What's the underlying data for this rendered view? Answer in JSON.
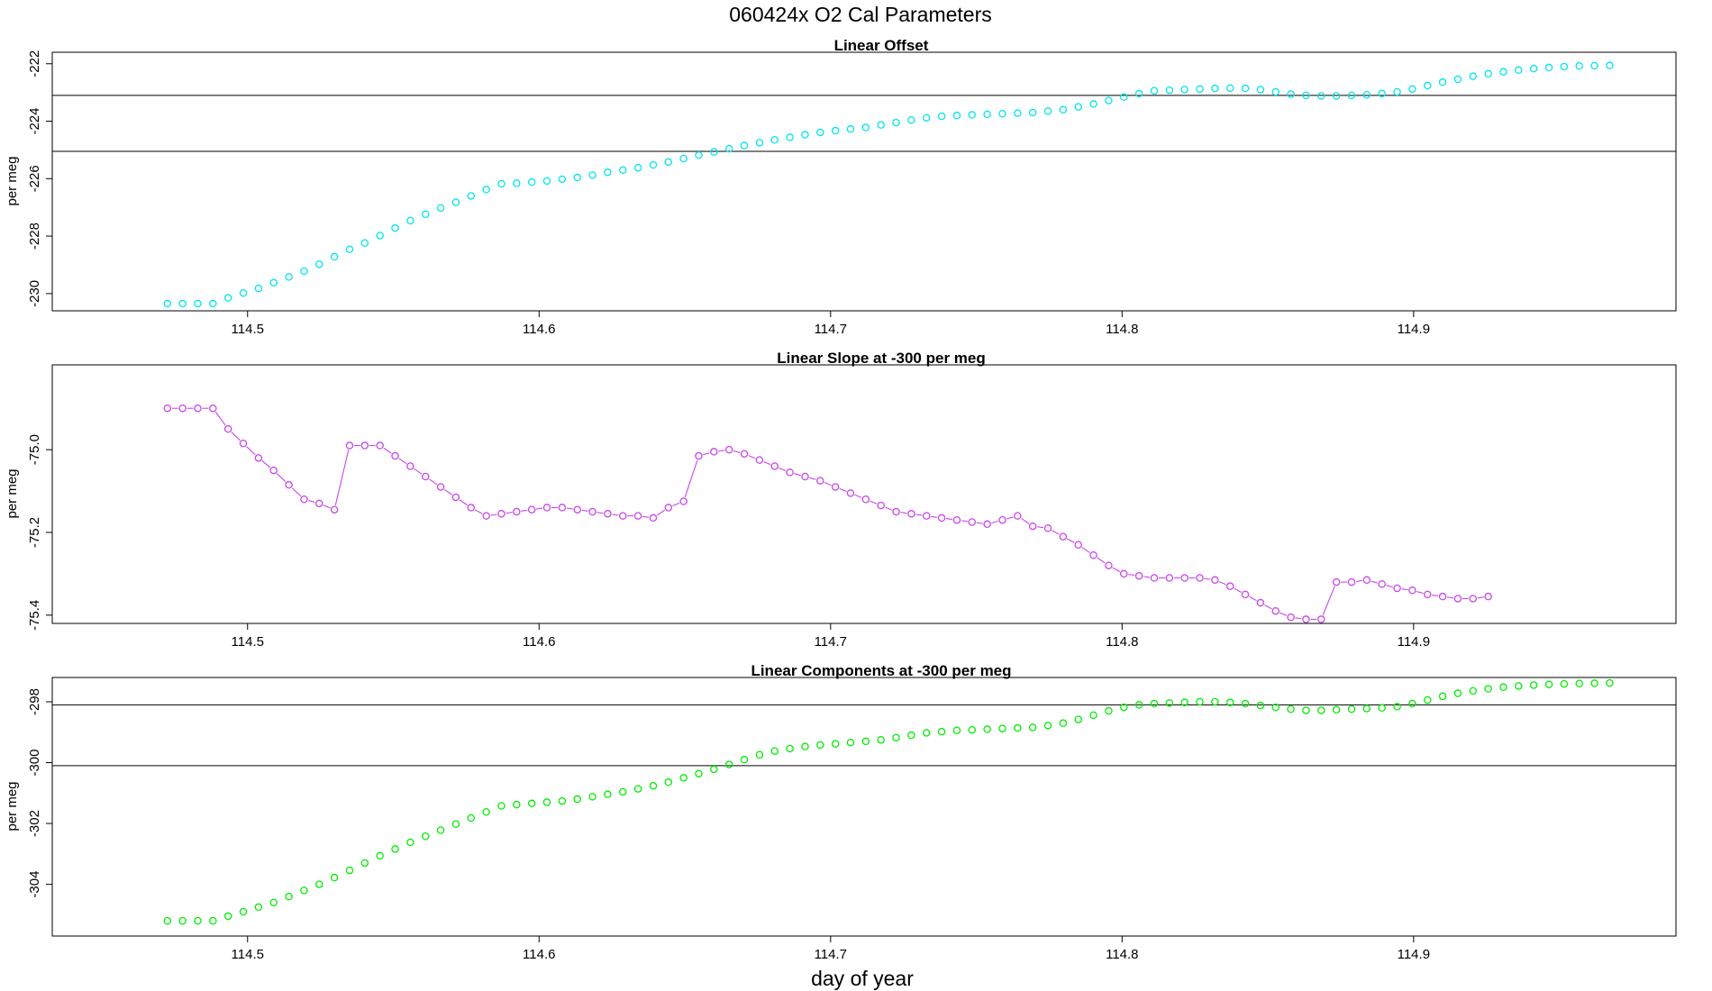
{
  "figure": {
    "title": "060424x   O2 Cal Parameters",
    "xlabel": "day of year"
  },
  "chart_data": [
    {
      "type": "scatter",
      "title": "Linear Offset",
      "xlabel": "",
      "ylabel": "per meg",
      "xlim": [
        114.433,
        114.99
      ],
      "ylim": [
        -230.6,
        -221.6
      ],
      "xticks": [
        114.5,
        114.6,
        114.7,
        114.8,
        114.9
      ],
      "yticks": [
        -230,
        -228,
        -226,
        -224,
        -222
      ],
      "hlines": [
        -223.1,
        -225.05
      ],
      "color": "#00e5ee",
      "connect_lines": false,
      "series": [
        {
          "x_start": 114.4725,
          "x_step": 0.005208,
          "values": [
            -230.35,
            -230.35,
            -230.35,
            -230.35,
            -230.15,
            -229.98,
            -229.82,
            -229.62,
            -229.42,
            -229.22,
            -228.98,
            -228.72,
            -228.46,
            -228.24,
            -227.98,
            -227.72,
            -227.46,
            -227.24,
            -227.02,
            -226.82,
            -226.6,
            -226.38,
            -226.18,
            -226.16,
            -226.12,
            -226.08,
            -226.02,
            -225.96,
            -225.88,
            -225.78,
            -225.7,
            -225.62,
            -225.52,
            -225.42,
            -225.3,
            -225.18,
            -225.07,
            -224.96,
            -224.85,
            -224.75,
            -224.65,
            -224.56,
            -224.47,
            -224.39,
            -224.33,
            -224.27,
            -224.22,
            -224.13,
            -224.05,
            -223.96,
            -223.88,
            -223.83,
            -223.8,
            -223.78,
            -223.76,
            -223.74,
            -223.72,
            -223.7,
            -223.65,
            -223.6,
            -223.5,
            -223.4,
            -223.28,
            -223.16,
            -223.04,
            -222.94,
            -222.92,
            -222.9,
            -222.88,
            -222.86,
            -222.85,
            -222.86,
            -222.9,
            -222.98,
            -223.06,
            -223.1,
            -223.12,
            -223.12,
            -223.1,
            -223.08,
            -223.04,
            -222.98,
            -222.88,
            -222.76,
            -222.64,
            -222.54,
            -222.44,
            -222.35,
            -222.28,
            -222.22,
            -222.17,
            -222.13,
            -222.1,
            -222.08,
            -222.07,
            -222.06
          ]
        }
      ]
    },
    {
      "type": "line",
      "title": "Linear Slope at -300 per meg",
      "xlabel": "",
      "ylabel": "per meg",
      "xlim": [
        114.433,
        114.99
      ],
      "ylim": [
        -75.42,
        -74.795
      ],
      "xticks": [
        114.5,
        114.6,
        114.7,
        114.8,
        114.9
      ],
      "yticks": [
        -75.4,
        -75.2,
        -75.0
      ],
      "hlines": [],
      "color": "#c846e6",
      "connect_lines": true,
      "series": [
        {
          "x_start": 114.4725,
          "x_step": 0.005208,
          "values": [
            -74.9,
            -74.9,
            -74.9,
            -74.9,
            -74.95,
            -74.985,
            -75.02,
            -75.05,
            -75.085,
            -75.12,
            -75.13,
            -75.145,
            -74.99,
            -74.99,
            -74.99,
            -75.015,
            -75.04,
            -75.065,
            -75.09,
            -75.115,
            -75.14,
            -75.16,
            -75.155,
            -75.15,
            -75.145,
            -75.14,
            -75.14,
            -75.145,
            -75.15,
            -75.155,
            -75.16,
            -75.16,
            -75.165,
            -75.14,
            -75.125,
            -75.015,
            -75.005,
            -75.0,
            -75.01,
            -75.025,
            -75.04,
            -75.055,
            -75.065,
            -75.075,
            -75.09,
            -75.105,
            -75.12,
            -75.135,
            -75.15,
            -75.155,
            -75.16,
            -75.165,
            -75.17,
            -75.175,
            -75.18,
            -75.17,
            -75.16,
            -75.185,
            -75.19,
            -75.21,
            -75.23,
            -75.255,
            -75.28,
            -75.3,
            -75.305,
            -75.31,
            -75.31,
            -75.31,
            -75.31,
            -75.315,
            -75.33,
            -75.35,
            -75.37,
            -75.39,
            -75.405,
            -75.41,
            -75.41,
            -75.32,
            -75.32,
            -75.315,
            -75.325,
            -75.335,
            -75.34,
            -75.35,
            -75.355,
            -75.36,
            -75.36,
            -75.355
          ]
        }
      ]
    },
    {
      "type": "scatter",
      "title": "Linear Components at -300 per meg",
      "xlabel": "",
      "ylabel": "per meg",
      "xlim": [
        114.433,
        114.99
      ],
      "ylim": [
        -305.7,
        -297.2
      ],
      "xticks": [
        114.5,
        114.6,
        114.7,
        114.8,
        114.9
      ],
      "yticks": [
        -304,
        -302,
        -300,
        -298
      ],
      "hlines": [
        -298.1,
        -300.1
      ],
      "color": "#00ee00",
      "connect_lines": false,
      "series": [
        {
          "x_start": 114.4725,
          "x_step": 0.005208,
          "values": [
            -305.2,
            -305.2,
            -305.2,
            -305.2,
            -305.05,
            -304.9,
            -304.75,
            -304.6,
            -304.4,
            -304.2,
            -304.0,
            -303.78,
            -303.54,
            -303.3,
            -303.06,
            -302.84,
            -302.62,
            -302.42,
            -302.22,
            -302.02,
            -301.82,
            -301.62,
            -301.42,
            -301.38,
            -301.34,
            -301.3,
            -301.26,
            -301.2,
            -301.12,
            -301.04,
            -300.96,
            -300.86,
            -300.76,
            -300.64,
            -300.5,
            -300.36,
            -300.22,
            -300.06,
            -299.9,
            -299.74,
            -299.62,
            -299.54,
            -299.47,
            -299.42,
            -299.38,
            -299.34,
            -299.3,
            -299.25,
            -299.18,
            -299.1,
            -299.02,
            -298.98,
            -298.94,
            -298.92,
            -298.9,
            -298.88,
            -298.86,
            -298.84,
            -298.78,
            -298.7,
            -298.58,
            -298.44,
            -298.3,
            -298.18,
            -298.1,
            -298.06,
            -298.04,
            -298.02,
            -298.0,
            -298.0,
            -298.02,
            -298.06,
            -298.12,
            -298.18,
            -298.24,
            -298.28,
            -298.28,
            -298.26,
            -298.24,
            -298.22,
            -298.2,
            -298.16,
            -298.06,
            -297.94,
            -297.82,
            -297.72,
            -297.64,
            -297.57,
            -297.52,
            -297.48,
            -297.45,
            -297.43,
            -297.41,
            -297.4,
            -297.39,
            -297.38
          ]
        }
      ]
    }
  ]
}
